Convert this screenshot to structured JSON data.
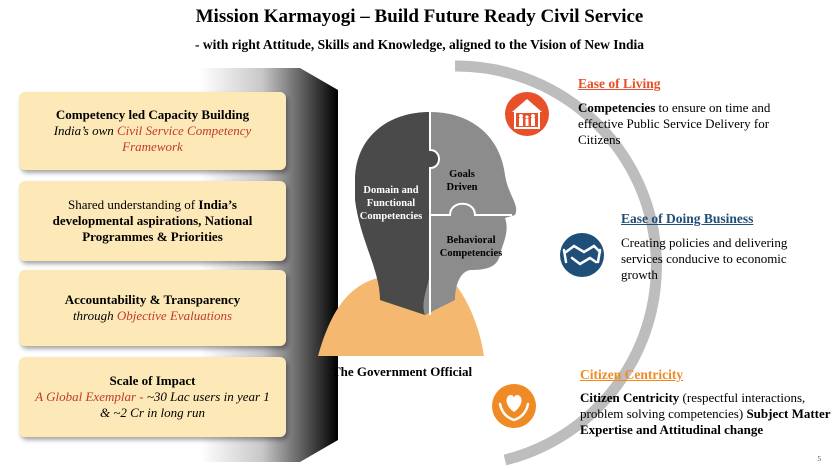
{
  "header": {
    "title": "Mission Karmayogi – Build Future Ready Civil Service",
    "subtitle": "- with right Attitude, Skills and Knowledge, aligned to the Vision of New India"
  },
  "left_boxes": [
    {
      "bold": "Competency led Capacity Building",
      "plain": "India’s own ",
      "red": "Civil Service Competency Framework"
    },
    {
      "plain": "Shared understanding  of ",
      "bold": "India’s developmental aspirations, National Programmes & Priorities"
    },
    {
      "bold": "Accountability & Transparency",
      "plain": "through ",
      "red": "Objective Evaluations"
    },
    {
      "bold": "Scale of Impact",
      "red": "A Global Exemplar - ",
      "plain": "~30 Lac users in year 1 & ~2 Cr in long run"
    }
  ],
  "head": {
    "domain": "Domain and Functional Competencies",
    "goals": "Goals Driven",
    "behavioral": "Behavioral Competencies",
    "caption": "The Government Official"
  },
  "right_items": [
    {
      "title": "Ease of Living",
      "color": "#e8502a",
      "icon": "family-home-icon",
      "body_bold": "Competencies",
      "body": " to ensure on time  and effective Public Service Delivery for Citizens"
    },
    {
      "title": "Ease of Doing Business",
      "color": "#1f4e79",
      "icon": "handshake-icon",
      "body": "Creating policies  and delivering services conducive to economic growth"
    },
    {
      "title": "Citizen Centricity",
      "color": "#f08a24",
      "icon": "heart-hands-icon",
      "body_bold": "Citizen Centricity",
      "body": " (respectful interactions, problem solving competencies) ",
      "body_bold2": "Subject Matter Expertise and Attitudinal change"
    }
  ],
  "page_number": "5",
  "colors": {
    "box_fill": "#fde9b8",
    "head_dark": "#4a4a4a",
    "head_light": "#8c8c8c",
    "shoulder": "#f5b870",
    "arc": "#bdbdbd"
  }
}
